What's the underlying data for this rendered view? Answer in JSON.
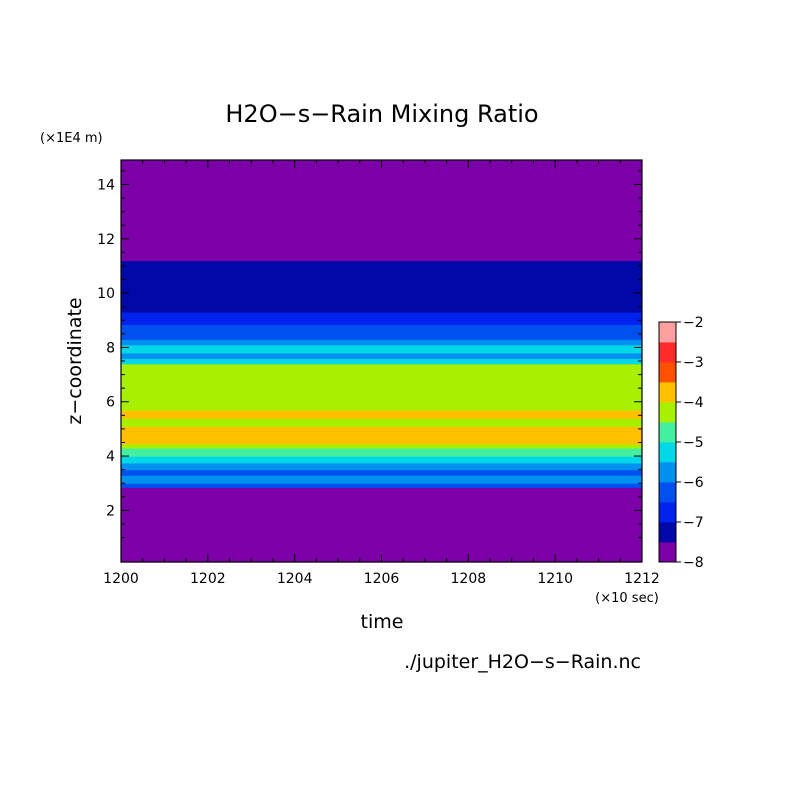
{
  "chart_data": {
    "type": "heatmap",
    "title": "H2O−s−Rain Mixing Ratio",
    "xlabel": "time",
    "ylabel": "z−coordinate",
    "x_unit": "(×10 sec)",
    "y_unit": "(×1E4 m)",
    "source_file": "./jupiter_H2O−s−Rain.nc",
    "x_range": [
      1200,
      1212
    ],
    "y_range": [
      0.1,
      14.9
    ],
    "x_ticks": [
      "1200",
      "1202",
      "1204",
      "1206",
      "1208",
      "1210",
      "1212"
    ],
    "y_ticks": [
      "2",
      "4",
      "6",
      "8",
      "10",
      "12",
      "14"
    ],
    "colorbar": {
      "range": [
        -8,
        -2
      ],
      "ticks": [
        "−8",
        "−7",
        "−6",
        "−5",
        "−4",
        "−3",
        "−2"
      ],
      "levels": [
        {
          "from": -8.0,
          "to": -7.5,
          "color": "#7b00a8"
        },
        {
          "from": -7.5,
          "to": -7.0,
          "color": "#0008a8"
        },
        {
          "from": -7.0,
          "to": -6.5,
          "color": "#0022ee"
        },
        {
          "from": -6.5,
          "to": -6.0,
          "color": "#0050f0"
        },
        {
          "from": -6.0,
          "to": -5.5,
          "color": "#0090f0"
        },
        {
          "from": -5.5,
          "to": -5.0,
          "color": "#00d8e8"
        },
        {
          "from": -5.0,
          "to": -4.5,
          "color": "#44f0a0"
        },
        {
          "from": -4.5,
          "to": -4.0,
          "color": "#a6f000"
        },
        {
          "from": -4.0,
          "to": -3.5,
          "color": "#ffc000"
        },
        {
          "from": -3.5,
          "to": -3.0,
          "color": "#ff5000"
        },
        {
          "from": -3.0,
          "to": -2.5,
          "color": "#ff2a2a"
        },
        {
          "from": -2.5,
          "to": -2.0,
          "color": "#ffa0a0"
        }
      ]
    },
    "bands": [
      {
        "z0": 0.1,
        "z1": 2.85,
        "value": -7.75
      },
      {
        "z0": 2.85,
        "z1": 3.0,
        "value": -6.25
      },
      {
        "z0": 3.0,
        "z1": 3.3,
        "value": -5.75
      },
      {
        "z0": 3.3,
        "z1": 3.5,
        "value": -6.25
      },
      {
        "z0": 3.5,
        "z1": 3.75,
        "value": -5.75
      },
      {
        "z0": 3.75,
        "z1": 4.0,
        "value": -5.25
      },
      {
        "z0": 4.0,
        "z1": 4.3,
        "value": -4.75
      },
      {
        "z0": 4.3,
        "z1": 4.45,
        "value": -4.25
      },
      {
        "z0": 4.45,
        "z1": 5.1,
        "value": -3.75
      },
      {
        "z0": 5.1,
        "z1": 5.4,
        "value": -4.25
      },
      {
        "z0": 5.4,
        "z1": 5.7,
        "value": -3.75
      },
      {
        "z0": 5.7,
        "z1": 7.4,
        "value": -4.25
      },
      {
        "z0": 7.4,
        "z1": 7.6,
        "value": -5.25
      },
      {
        "z0": 7.6,
        "z1": 7.8,
        "value": -5.75
      },
      {
        "z0": 7.8,
        "z1": 8.1,
        "value": -5.25
      },
      {
        "z0": 8.1,
        "z1": 8.3,
        "value": -5.75
      },
      {
        "z0": 8.3,
        "z1": 8.85,
        "value": -6.25
      },
      {
        "z0": 8.85,
        "z1": 9.3,
        "value": -6.75
      },
      {
        "z0": 9.3,
        "z1": 11.2,
        "value": -7.25
      },
      {
        "z0": 11.2,
        "z1": 14.9,
        "value": -7.75
      }
    ]
  }
}
